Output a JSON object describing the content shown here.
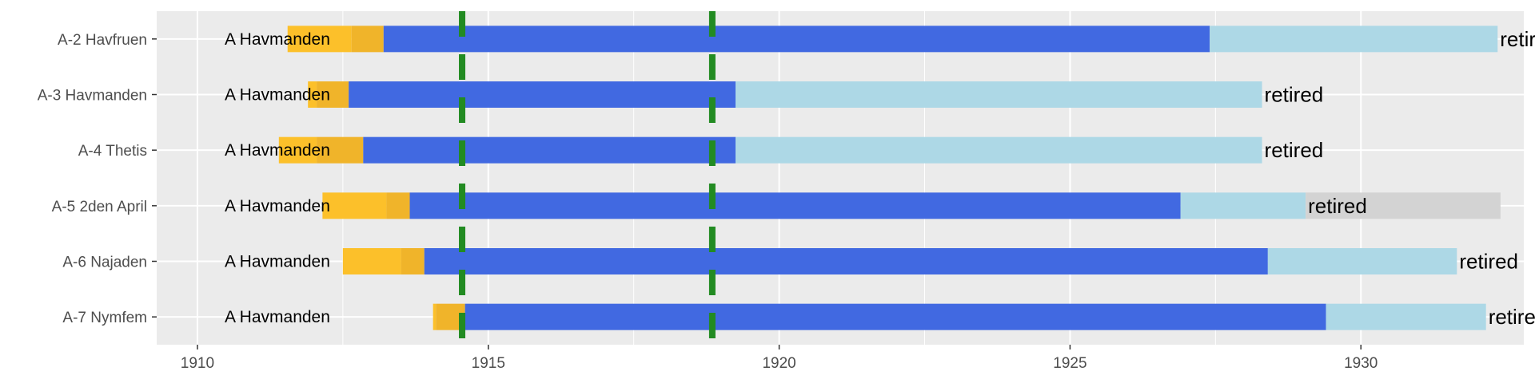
{
  "chart_data": {
    "type": "bar",
    "orientation": "horizontal",
    "stacked_segments": true,
    "title": "",
    "xlabel": "",
    "ylabel": "",
    "xlim": [
      1909.3,
      1932.8
    ],
    "x_ticks": [
      1910,
      1915,
      1920,
      1925,
      1930
    ],
    "grid": true,
    "legend": "none",
    "categories": [
      "A-2 Havfruen",
      "A-3 Havmanden",
      "A-4 Thetis",
      "A-5 2den April",
      "A-6 Najaden",
      "A-7 Nymfem"
    ],
    "class_label": "A Havmanden",
    "end_label": "retired",
    "vlines": [
      1914.55,
      1918.85
    ],
    "colors": {
      "panel": "#ebebeb",
      "grid": "#ffffff",
      "construction_light": "#fcc02a",
      "construction_dark": "#f0b42a",
      "active_service": "#4169e1",
      "later_service": "#add8e6",
      "stored": "#d3d3d3",
      "vline": "#228b22"
    },
    "series": [
      {
        "category": "A-2 Havfruen",
        "segments": [
          {
            "start": 1911.55,
            "end": 1912.65,
            "color": "construction_light"
          },
          {
            "start": 1912.65,
            "end": 1913.2,
            "color": "construction_dark"
          },
          {
            "start": 1913.2,
            "end": 1927.4,
            "color": "active_service"
          },
          {
            "start": 1927.4,
            "end": 1932.35,
            "color": "later_service"
          }
        ]
      },
      {
        "category": "A-3 Havmanden",
        "segments": [
          {
            "start": 1911.9,
            "end": 1912.05,
            "color": "construction_light"
          },
          {
            "start": 1912.05,
            "end": 1912.6,
            "color": "construction_dark"
          },
          {
            "start": 1912.6,
            "end": 1919.25,
            "color": "active_service"
          },
          {
            "start": 1919.25,
            "end": 1928.3,
            "color": "later_service"
          }
        ]
      },
      {
        "category": "A-4 Thetis",
        "segments": [
          {
            "start": 1911.4,
            "end": 1912.05,
            "color": "construction_light"
          },
          {
            "start": 1912.05,
            "end": 1912.85,
            "color": "construction_dark"
          },
          {
            "start": 1912.85,
            "end": 1919.25,
            "color": "active_service"
          },
          {
            "start": 1919.25,
            "end": 1928.3,
            "color": "later_service"
          }
        ]
      },
      {
        "category": "A-5 2den April",
        "segments": [
          {
            "start": 1912.15,
            "end": 1913.25,
            "color": "construction_light"
          },
          {
            "start": 1913.25,
            "end": 1913.65,
            "color": "construction_dark"
          },
          {
            "start": 1913.65,
            "end": 1926.9,
            "color": "active_service"
          },
          {
            "start": 1926.9,
            "end": 1929.05,
            "color": "later_service"
          },
          {
            "start": 1929.05,
            "end": 1932.4,
            "color": "stored"
          }
        ]
      },
      {
        "category": "A-6 Najaden",
        "segments": [
          {
            "start": 1912.5,
            "end": 1913.5,
            "color": "construction_light"
          },
          {
            "start": 1913.5,
            "end": 1913.9,
            "color": "construction_dark"
          },
          {
            "start": 1913.9,
            "end": 1928.4,
            "color": "active_service"
          },
          {
            "start": 1928.4,
            "end": 1931.65,
            "color": "later_service"
          }
        ]
      },
      {
        "category": "A-7 Nymfem",
        "segments": [
          {
            "start": 1914.05,
            "end": 1914.1,
            "color": "construction_light"
          },
          {
            "start": 1914.1,
            "end": 1914.6,
            "color": "construction_dark"
          },
          {
            "start": 1914.6,
            "end": 1929.4,
            "color": "active_service"
          },
          {
            "start": 1929.4,
            "end": 1932.15,
            "color": "later_service"
          }
        ]
      }
    ]
  }
}
